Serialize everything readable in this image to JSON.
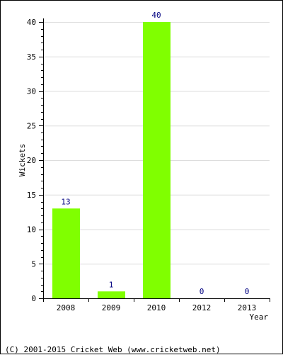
{
  "chart_data": {
    "type": "bar",
    "title": "",
    "xlabel": "Year",
    "ylabel": "Wickets",
    "categories": [
      "2008",
      "2009",
      "2010",
      "2012",
      "2013"
    ],
    "values": [
      13,
      1,
      40,
      0,
      0
    ],
    "data_labels": [
      "13",
      "1",
      "40",
      "0",
      "0"
    ],
    "ylim": [
      0,
      40
    ],
    "yticks": [
      0,
      5,
      10,
      15,
      20,
      25,
      30,
      35,
      40
    ],
    "grid": true,
    "bar_color": "#80ff00",
    "label_color": "#000080",
    "grid_color": "#dddddd"
  },
  "footer": {
    "copyright": "(C) 2001-2015 Cricket Web (www.cricketweb.net)"
  }
}
